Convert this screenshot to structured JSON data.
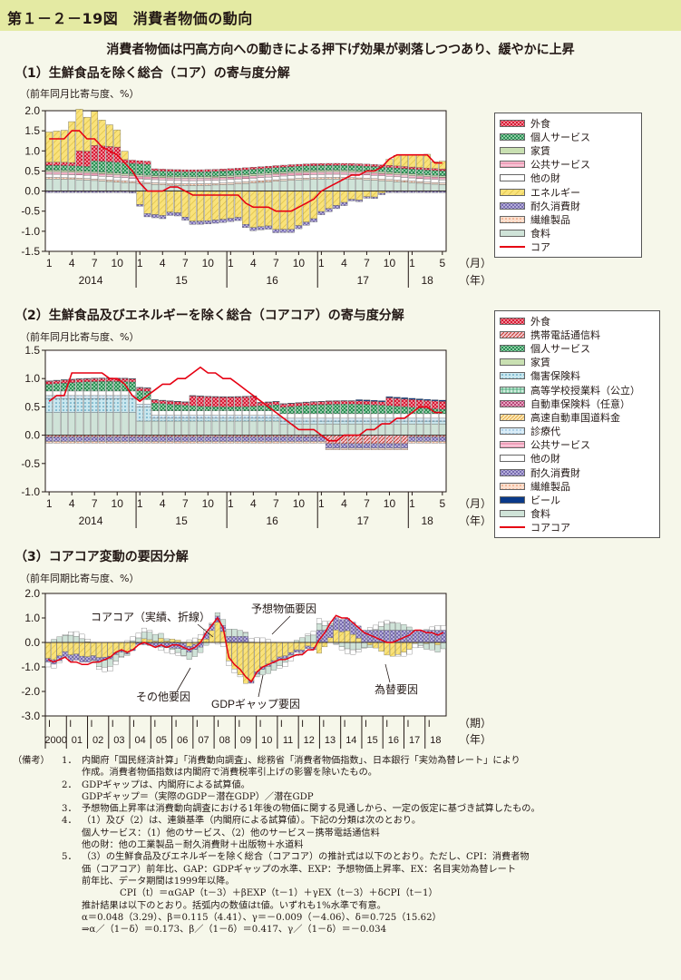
{
  "figure": {
    "number": "第１－２－19図",
    "title": "消費者物価の動向",
    "subtitle": "消費者物価は円高方向への動きによる押下げ効果が剥落しつつあり、緩やかに上昇"
  },
  "colors": {
    "header_bg": "#e4eaa3",
    "page_bg": "#f6f7ea",
    "core_line": "#e60012",
    "energy": "#f9e27a",
    "food": "#cfe3d8",
    "durable": "#6b5fa8",
    "public_service": "#f2a5bf",
    "service": "#2f9a5a",
    "eating_out": "#d7132e"
  },
  "chart_data": [
    {
      "id": "core",
      "type": "bar",
      "stacked": true,
      "title": "（1）生鮮食品を除く総合（コア）の寄与度分解",
      "unit": "（前年同月比寄与度、%）",
      "ylim": [
        -1.5,
        2.0
      ],
      "yticks": [
        "2.0",
        "1.5",
        "1.0",
        "0.5",
        "0.0",
        "-0.5",
        "-1.0",
        "-1.5"
      ],
      "month_labels": [
        "1",
        "4",
        "7",
        "10",
        "1",
        "4",
        "7",
        "10",
        "1",
        "4",
        "7",
        "10",
        "1",
        "4",
        "7",
        "10",
        "1",
        "5"
      ],
      "year_labels": [
        "2014",
        "15",
        "16",
        "17",
        "18"
      ],
      "month_unit": "（月）",
      "year_unit": "（年）",
      "x_start": "2014-01",
      "x_end": "2018-05",
      "legend_position": "right",
      "series": [
        {
          "name": "外食",
          "pattern": "p-eat"
        },
        {
          "name": "個人サービス",
          "pattern": "p-svc"
        },
        {
          "name": "家賃",
          "pattern": "p-rent"
        },
        {
          "name": "公共サービス",
          "pattern": "p-pub"
        },
        {
          "name": "他の財",
          "pattern": "p-other"
        },
        {
          "name": "エネルギー",
          "pattern": "p-energy"
        },
        {
          "name": "耐久消費財",
          "pattern": "p-dur"
        },
        {
          "name": "繊維製品",
          "pattern": "p-tex"
        },
        {
          "name": "食料",
          "pattern": "p-food"
        },
        {
          "name": "コア",
          "line": true
        }
      ],
      "core_line": [
        1.3,
        1.3,
        1.3,
        1.5,
        1.5,
        1.3,
        1.3,
        1.1,
        1.0,
        0.9,
        0.7,
        0.5,
        0.2,
        0.0,
        0.0,
        0.0,
        0.1,
        0.1,
        0.0,
        -0.1,
        -0.1,
        -0.1,
        -0.1,
        -0.1,
        -0.1,
        -0.1,
        -0.3,
        -0.4,
        -0.4,
        -0.4,
        -0.5,
        -0.5,
        -0.5,
        -0.4,
        -0.3,
        -0.2,
        0.0,
        0.1,
        0.2,
        0.3,
        0.4,
        0.4,
        0.5,
        0.5,
        0.6,
        0.8,
        0.9,
        0.9,
        0.9,
        0.9,
        0.9,
        0.7,
        0.7
      ]
    },
    {
      "id": "corecore",
      "type": "bar",
      "stacked": true,
      "title": "（2）生鮮食品及びエネルギーを除く総合（コアコア）の寄与度分解",
      "unit": "（前年同月比寄与度、%）",
      "ylim": [
        -1.0,
        1.5
      ],
      "yticks": [
        "1.5",
        "1.0",
        "0.5",
        "0.0",
        "-0.5",
        "-1.0"
      ],
      "month_labels": [
        "1",
        "4",
        "7",
        "10",
        "1",
        "4",
        "7",
        "10",
        "1",
        "4",
        "7",
        "10",
        "1",
        "4",
        "7",
        "10",
        "1",
        "5"
      ],
      "year_labels": [
        "2014",
        "15",
        "16",
        "17",
        "18"
      ],
      "month_unit": "（月）",
      "year_unit": "（年）",
      "legend_position": "right",
      "series": [
        {
          "name": "外食",
          "pattern": "p-eat"
        },
        {
          "name": "携帯電話通信料",
          "pattern": "p-phone"
        },
        {
          "name": "個人サービス",
          "pattern": "p-svc"
        },
        {
          "name": "家賃",
          "pattern": "p-rent"
        },
        {
          "name": "傷害保険料",
          "pattern": "p-ins"
        },
        {
          "name": "高等学校授業料（公立）",
          "pattern": "p-tuition"
        },
        {
          "name": "自動車保険料（任意）",
          "pattern": "p-car"
        },
        {
          "name": "高速自動車国道料金",
          "pattern": "p-toll"
        },
        {
          "name": "診療代",
          "pattern": "p-med"
        },
        {
          "name": "公共サービス",
          "pattern": "p-pub"
        },
        {
          "name": "他の財",
          "pattern": "p-other"
        },
        {
          "name": "耐久消費財",
          "pattern": "p-dur"
        },
        {
          "name": "繊維製品",
          "pattern": "p-tex"
        },
        {
          "name": "ビール",
          "pattern": "p-beer"
        },
        {
          "name": "食料",
          "pattern": "p-food"
        },
        {
          "name": "コアコア",
          "line": true
        }
      ],
      "core_line": [
        0.6,
        0.7,
        0.7,
        1.1,
        1.1,
        1.1,
        1.1,
        1.1,
        1.0,
        1.0,
        0.9,
        0.7,
        0.6,
        0.7,
        0.8,
        0.9,
        0.9,
        1.0,
        1.0,
        1.1,
        1.2,
        1.1,
        1.1,
        1.0,
        1.0,
        0.9,
        0.8,
        0.7,
        0.6,
        0.5,
        0.4,
        0.3,
        0.2,
        0.1,
        0.1,
        0.1,
        0.0,
        -0.1,
        -0.1,
        0.0,
        0.0,
        0.0,
        0.1,
        0.1,
        0.2,
        0.2,
        0.3,
        0.3,
        0.4,
        0.5,
        0.5,
        0.4,
        0.4
      ]
    },
    {
      "id": "factors",
      "type": "bar",
      "stacked": true,
      "title": "（3）コアコア変動の要因分解",
      "unit": "（前年同期比寄与度、%）",
      "ylim": [
        -3.0,
        2.0
      ],
      "yticks": [
        "2.0",
        "1.0",
        "0.0",
        "-1.0",
        "-2.0",
        "-3.0"
      ],
      "quarter_label": "Ⅰ",
      "year_labels": [
        "2000",
        "01",
        "02",
        "03",
        "04",
        "05",
        "06",
        "07",
        "08",
        "09",
        "10",
        "11",
        "12",
        "13",
        "14",
        "15",
        "16",
        "17",
        "18"
      ],
      "x_unit": "（期）",
      "year_unit": "（年）",
      "annotations": [
        "コアコア（実績、折線）",
        "予想物価要因",
        "その他要因",
        "GDPギャップ要因",
        "為替要因"
      ],
      "actual_line": [
        -0.7,
        -0.8,
        -0.7,
        -0.6,
        -0.8,
        -0.8,
        -0.9,
        -0.9,
        -0.8,
        -0.8,
        -0.7,
        -0.6,
        -0.4,
        -0.3,
        -0.4,
        -0.3,
        -0.1,
        0.0,
        -0.1,
        -0.2,
        -0.1,
        -0.2,
        -0.1,
        -0.1,
        -0.2,
        -0.3,
        -0.2,
        0.0,
        0.4,
        0.7,
        1.0,
        0.6,
        -0.6,
        -0.9,
        -1.1,
        -1.4,
        -1.6,
        -1.2,
        -1.0,
        -0.9,
        -0.8,
        -0.7,
        -0.7,
        -0.6,
        -0.5,
        -0.5,
        -0.3,
        -0.3,
        0.1,
        0.4,
        0.8,
        1.1,
        1.0,
        1.0,
        0.8,
        0.6,
        0.4,
        0.3,
        0.2,
        0.1,
        0.0,
        0.0,
        0.1,
        0.2,
        0.3,
        0.5,
        0.5,
        0.4,
        0.4,
        0.3,
        0.4
      ]
    }
  ],
  "notes": {
    "label": "（備考）",
    "items": [
      {
        "num": "1．",
        "lines": [
          "内閣府「国民経済計算」「消費動向調査」、総務省「消費者物価指数」、日本銀行「実効為替レート」により",
          "作成。消費者物価指数は内閣府で消費税率引上げの影響を除いたもの。"
        ]
      },
      {
        "num": "2．",
        "lines": [
          "GDPギャップは、内閣府による試算値。",
          "GDPギャップ＝（実際のGDP－潜在GDP）／潜在GDP"
        ]
      },
      {
        "num": "3．",
        "lines": [
          "予想物価上昇率は消費動向調査における1年後の物価に関する見通しから、一定の仮定に基づき試算したもの。"
        ]
      },
      {
        "num": "4．",
        "lines": [
          "（1）及び（2）は、連鎖基準（内閣府による試算値）。下記の分類は次のとおり。",
          "個人サービス：（1）他のサービス、（2）他のサービス－携帯電話通信料",
          "他の財：他の工業製品－耐久消費財＋出版物＋水道料"
        ]
      },
      {
        "num": "5．",
        "lines": [
          "（3）の生鮮食品及びエネルギーを除く総合（コアコア）の推計式は以下のとおり。ただし、CPI：消費者物",
          "価（コアコア）前年比、GAP：GDPギャップの水準、EXP：予想物価上昇率、EX：名目実効為替レート",
          "前年比、データ期間は1999年以降。"
        ]
      }
    ],
    "formula": "CPI（t）＝αGAP（t－3）＋βEXP（t－1）＋γEX（t－3）＋δCPI（t－1）",
    "estimate_note": "推計結果は以下のとおり。括弧内の数値はt値。いずれも1%水準で有意。",
    "coef_line": "α＝0.048（3.29）、β＝0.115（4.41）、γ＝－0.009（－4.06）、δ＝0.725（15.62）",
    "derived_line": "⇒α／（1－δ）＝0.173、β／（1－δ）＝0.417、γ／（1－δ）＝－0.034"
  }
}
